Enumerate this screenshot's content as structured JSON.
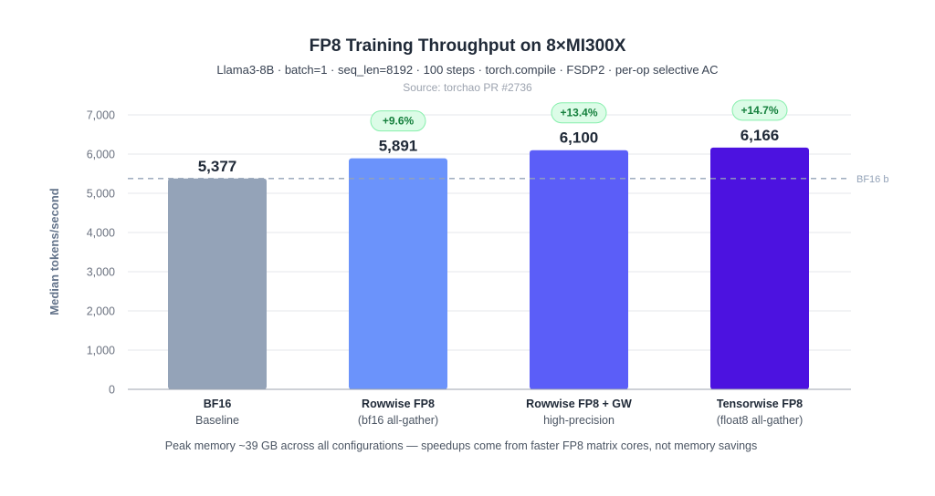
{
  "chart_data": {
    "type": "bar",
    "title": "FP8 Training Throughput on 8×MI300X",
    "subtitle": "Llama3-8B · batch=1 · seq_len=8192 · 100 steps · torch.compile · FSDP2 · per-op selective AC",
    "source": "Source: torchao PR #2736",
    "ylabel": "Median tokens/second",
    "ylim": [
      0,
      7000
    ],
    "yticks": [
      0,
      1000,
      2000,
      3000,
      4000,
      5000,
      6000,
      7000
    ],
    "ytick_labels": [
      "0",
      "1,000",
      "2,000",
      "3,000",
      "4,000",
      "5,000",
      "6,000",
      "7,000"
    ],
    "grid": true,
    "categories": [
      {
        "name": "BF16",
        "detail": "Baseline"
      },
      {
        "name": "Rowwise FP8",
        "detail": "(bf16 all-gather)"
      },
      {
        "name": "Rowwise FP8 + GW",
        "detail": "high-precision"
      },
      {
        "name": "Tensorwise FP8",
        "detail": "(float8 all-gather)"
      }
    ],
    "values": [
      5377,
      5891,
      6100,
      6166
    ],
    "value_labels": [
      "5,377",
      "5,891",
      "6,100",
      "6,166"
    ],
    "speedup_labels": [
      "",
      "+9.6%",
      "+13.4%",
      "+14.7%"
    ],
    "colors": [
      "#94a3b8",
      "#6b93fb",
      "#5b5ef8",
      "#4c12e0"
    ],
    "reference_line": {
      "value": 5377,
      "label": "BF16 b"
    },
    "footnote": "Peak memory ~39 GB across all configurations — speedups come from faster FP8 matrix cores, not memory savings"
  }
}
